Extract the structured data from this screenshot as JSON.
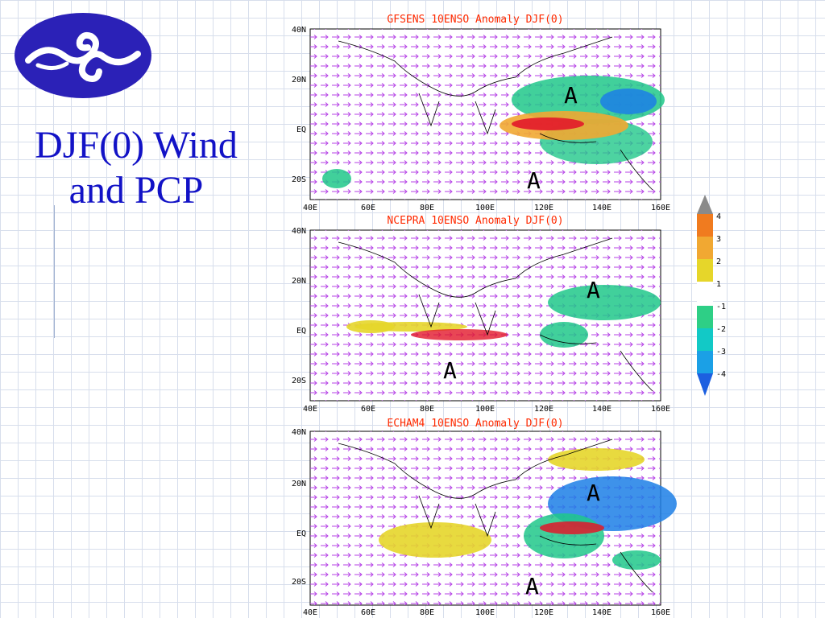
{
  "slide": {
    "title_line1": "DJF(0) Wind",
    "title_line2": "and PCP"
  },
  "panels": [
    {
      "title": "GFSENS 10ENSO Anomaly DJF(0)",
      "y_ticks": [
        "40N",
        "20N",
        "EQ",
        "20S"
      ],
      "x_ticks": [
        "40E",
        "60E",
        "80E",
        "100E",
        "120E",
        "140E",
        "160E"
      ],
      "markers": [
        "A",
        "A"
      ]
    },
    {
      "title": "NCEPRA 10ENSO Anomaly DJF(0)",
      "y_ticks": [
        "40N",
        "20N",
        "EQ",
        "20S"
      ],
      "x_ticks": [
        "40E",
        "60E",
        "80E",
        "100E",
        "120E",
        "140E",
        "160E"
      ],
      "markers": [
        "A",
        "A"
      ]
    },
    {
      "title": "ECHAM4 10ENSO Anomaly DJF(0)",
      "y_ticks": [
        "40N",
        "20N",
        "EQ",
        "20S"
      ],
      "x_ticks": [
        "40E",
        "60E",
        "80E",
        "100E",
        "120E",
        "140E",
        "160E"
      ],
      "markers": [
        "A",
        "A"
      ]
    }
  ],
  "colorbar": {
    "labels": [
      "4",
      "3",
      "2",
      "1",
      "-1",
      "-2",
      "-3",
      "-4"
    ],
    "colors": [
      "#8a8a8a",
      "#f07b1f",
      "#f1a832",
      "#e6d62a",
      "#ffffff",
      "#2ecf86",
      "#12c9c6",
      "#1ba0e6",
      "#1c5fe0"
    ]
  },
  "colors": {
    "title_blue": "#1212c6",
    "panel_title_red": "#ff2a00",
    "wind_vector": "#b542e6",
    "logo_blue": "#2b21b7"
  }
}
